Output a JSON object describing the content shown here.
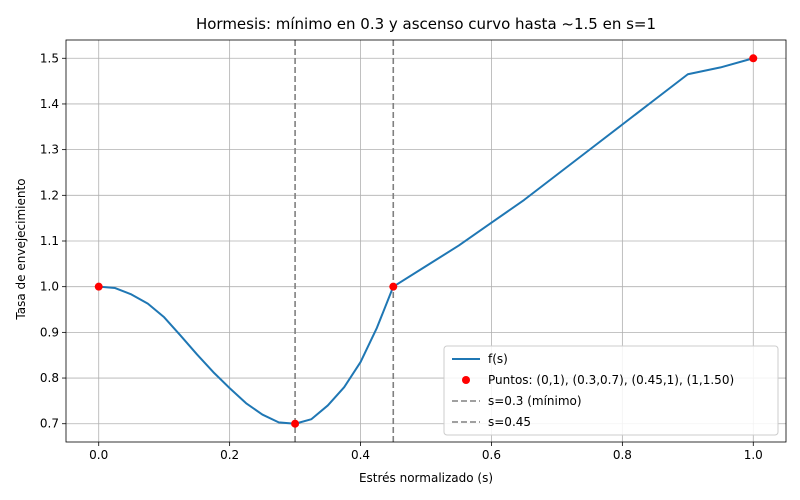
{
  "chart_data": {
    "type": "line",
    "title": "Hormesis: mínimo en 0.3 y ascenso curvo hasta ~1.5 en s=1",
    "xlabel": "Estrés normalizado (s)",
    "ylabel": "Tasa de envejecimiento",
    "xlim": [
      -0.05,
      1.05
    ],
    "ylim": [
      0.66,
      1.54
    ],
    "xticks": [
      "0.0",
      "0.2",
      "0.4",
      "0.6",
      "0.8",
      "1.0"
    ],
    "yticks": [
      "0.7",
      "0.8",
      "0.9",
      "1.0",
      "1.1",
      "1.2",
      "1.3",
      "1.4",
      "1.5"
    ],
    "grid": true,
    "legend_position": "lower-right",
    "series": [
      {
        "name": "f(s)",
        "kind": "line",
        "color": "#1f77b4",
        "x": [
          0.0,
          0.025,
          0.05,
          0.075,
          0.1,
          0.125,
          0.15,
          0.175,
          0.2,
          0.225,
          0.25,
          0.275,
          0.3,
          0.325,
          0.35,
          0.375,
          0.4,
          0.425,
          0.45,
          0.5,
          0.55,
          0.6,
          0.65,
          0.7,
          0.75,
          0.8,
          0.85,
          0.9,
          0.95,
          1.0
        ],
        "y": [
          1.0,
          0.997,
          0.983,
          0.963,
          0.933,
          0.893,
          0.852,
          0.813,
          0.778,
          0.745,
          0.72,
          0.703,
          0.7,
          0.71,
          0.74,
          0.78,
          0.835,
          0.91,
          1.0,
          1.045,
          1.09,
          1.14,
          1.19,
          1.245,
          1.3,
          1.355,
          1.41,
          1.465,
          1.48,
          1.5
        ]
      },
      {
        "name": "Puntos: (0,1), (0.3,0.7), (0.45,1), (1,1.50)",
        "kind": "scatter",
        "color": "#ff0000",
        "x": [
          0.0,
          0.3,
          0.45,
          1.0
        ],
        "y": [
          1.0,
          0.7,
          1.0,
          1.5
        ]
      },
      {
        "name": "s=0.3 (mínimo)",
        "kind": "vline",
        "color": "#808080",
        "x": 0.3
      },
      {
        "name": "s=0.45",
        "kind": "vline",
        "color": "#808080",
        "x": 0.45
      }
    ]
  }
}
